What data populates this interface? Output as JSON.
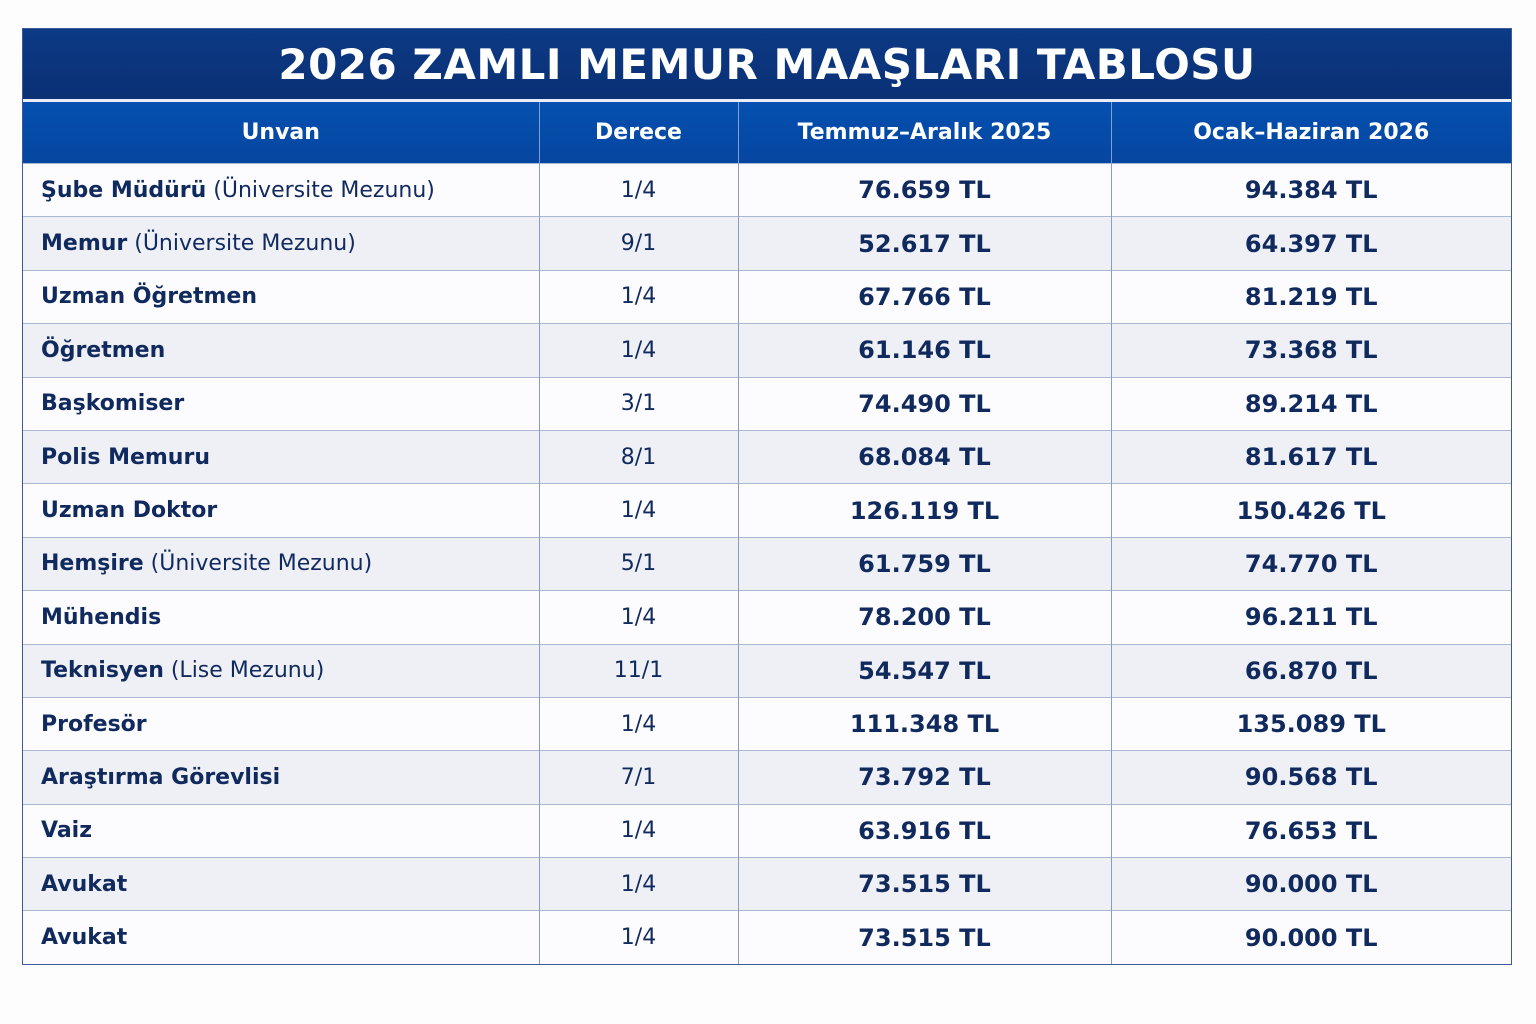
{
  "title": "2026 ZAMLI MEMUR MAAŞLARI TABLOSU",
  "colors": {
    "title_bg": "#0a3075",
    "header_bg": "#0550b0",
    "text": "#112a5e",
    "row_alt": "#eef0f6"
  },
  "chart_data": {
    "type": "table",
    "title": "2026 ZAMLI MEMUR MAAŞLARI TABLOSU",
    "columns": [
      "Unvan",
      "Derece",
      "Temmuz–Aralık 2025",
      "Ocak–Haziran 2026"
    ],
    "rows": [
      {
        "name": "Şube Müdürü",
        "note": " (Üniversite Mezunu)",
        "derece": "1/4",
        "h2025": "76.659 TL",
        "h2026": "94.384 TL"
      },
      {
        "name": "Memur",
        "note": " (Üniversite Mezunu)",
        "derece": "9/1",
        "h2025": "52.617 TL",
        "h2026": "64.397 TL"
      },
      {
        "name": "Uzman Öğretmen",
        "note": "",
        "derece": "1/4",
        "h2025": "67.766 TL",
        "h2026": "81.219 TL"
      },
      {
        "name": "Öğretmen",
        "note": "",
        "derece": "1/4",
        "h2025": "61.146 TL",
        "h2026": "73.368 TL"
      },
      {
        "name": "Başkomiser",
        "note": "",
        "derece": "3/1",
        "h2025": "74.490 TL",
        "h2026": "89.214 TL"
      },
      {
        "name": "Polis Memuru",
        "note": "",
        "derece": "8/1",
        "h2025": "68.084 TL",
        "h2026": "81.617 TL"
      },
      {
        "name": "Uzman Doktor",
        "note": "",
        "derece": "1/4",
        "h2025": "126.119 TL",
        "h2026": "150.426 TL"
      },
      {
        "name": "Hemşire",
        "note": " (Üniversite Mezunu)",
        "derece": "5/1",
        "h2025": "61.759 TL",
        "h2026": "74.770 TL"
      },
      {
        "name": "Mühendis",
        "note": "",
        "derece": "1/4",
        "h2025": "78.200 TL",
        "h2026": "96.211 TL"
      },
      {
        "name": "Teknisyen",
        "note": " (Lise Mezunu)",
        "derece": "11/1",
        "h2025": "54.547 TL",
        "h2026": "66.870 TL"
      },
      {
        "name": "Profesör",
        "note": "",
        "derece": "1/4",
        "h2025": "111.348 TL",
        "h2026": "135.089 TL"
      },
      {
        "name": "Araştırma Görevlisi",
        "note": "",
        "derece": "7/1",
        "h2025": "73.792 TL",
        "h2026": "90.568 TL"
      },
      {
        "name": "Vaiz",
        "note": "",
        "derece": "1/4",
        "h2025": "63.916 TL",
        "h2026": "76.653 TL"
      },
      {
        "name": "Avukat",
        "note": "",
        "derece": "1/4",
        "h2025": "73.515 TL",
        "h2026": "90.000 TL"
      },
      {
        "name": "Avukat",
        "note": "",
        "derece": "1/4",
        "h2025": "73.515 TL",
        "h2026": "90.000 TL"
      }
    ]
  }
}
